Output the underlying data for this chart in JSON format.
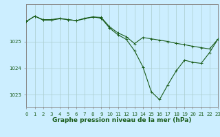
{
  "background_color": "#cceeff",
  "grid_color": "#aacccc",
  "line_color": "#1a5c1a",
  "marker_color": "#1a5c1a",
  "title": "Graphe pression niveau de la mer (hPa)",
  "xlim": [
    0,
    23
  ],
  "ylim": [
    1022.55,
    1026.4
  ],
  "yticks": [
    1023,
    1024,
    1025
  ],
  "xticks": [
    0,
    1,
    2,
    3,
    4,
    5,
    6,
    7,
    8,
    9,
    10,
    11,
    12,
    13,
    14,
    15,
    16,
    17,
    18,
    19,
    20,
    21,
    22,
    23
  ],
  "series1_x": [
    0,
    1,
    2,
    3,
    4,
    5,
    6,
    7,
    8,
    9,
    10,
    11,
    12,
    13,
    14,
    15,
    16,
    17,
    18,
    19,
    20,
    21,
    22,
    23
  ],
  "series1_y": [
    1025.75,
    1025.95,
    1025.8,
    1025.8,
    1025.85,
    1025.82,
    1025.78,
    1025.85,
    1025.92,
    1025.87,
    1025.5,
    1025.25,
    1025.08,
    1024.65,
    1024.05,
    1023.12,
    1022.82,
    1023.38,
    1023.9,
    1024.3,
    1024.22,
    1024.18,
    1024.58,
    1025.08
  ],
  "series2_x": [
    0,
    1,
    2,
    3,
    4,
    5,
    6,
    7,
    8,
    9,
    10,
    11,
    12,
    13,
    14,
    15,
    16,
    17,
    18,
    19,
    20,
    21,
    22,
    23
  ],
  "series2_y": [
    1025.75,
    1025.95,
    1025.82,
    1025.82,
    1025.87,
    1025.82,
    1025.78,
    1025.87,
    1025.92,
    1025.9,
    1025.55,
    1025.32,
    1025.18,
    1024.92,
    1025.15,
    1025.1,
    1025.05,
    1025.0,
    1024.93,
    1024.88,
    1024.82,
    1024.77,
    1024.72,
    1025.08
  ],
  "title_fontsize": 6.5,
  "tick_fontsize": 5,
  "title_color": "#1a5c1a",
  "tick_color": "#1a5c1a",
  "axis_color": "#666666",
  "spine_color": "#888888"
}
